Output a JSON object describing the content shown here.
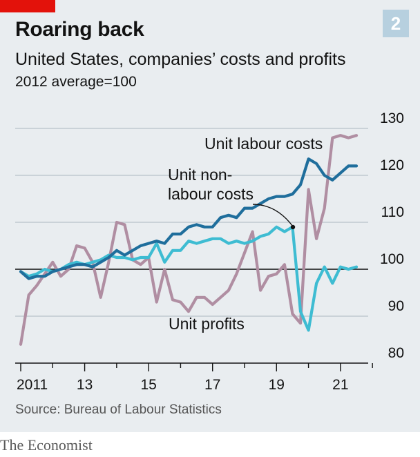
{
  "header": {
    "title": "Roaring back",
    "subtitle": "United States, companies’ costs and profits",
    "units": "2012 average=100",
    "chart_number": "2"
  },
  "footer": {
    "source": "Source: Bureau of Labour Statistics",
    "brand": "The Economist"
  },
  "colors": {
    "unit_labour_costs": "#1f6e9c",
    "unit_non_labour_costs": "#3ebcd2",
    "unit_profits": "#b08ea2",
    "background": "#e9edf0",
    "accent": "#e3120b"
  },
  "chart_data": {
    "type": "line",
    "title": "Roaring back",
    "xlabel": "",
    "ylabel": "2012 average=100",
    "xlim": [
      2011,
      2022.3
    ],
    "ylim": [
      80,
      130
    ],
    "y_ticks": [
      80,
      90,
      100,
      110,
      120,
      130
    ],
    "x_ticks": [
      {
        "value": 2011,
        "label": "2011"
      },
      {
        "value": 2013,
        "label": "13"
      },
      {
        "value": 2015,
        "label": "15"
      },
      {
        "value": 2017,
        "label": "17"
      },
      {
        "value": 2019,
        "label": "19"
      },
      {
        "value": 2021,
        "label": "21"
      }
    ],
    "reference_line": 100,
    "series": [
      {
        "name": "Unit profits",
        "color_key": "unit_profits",
        "label": "Unit profits",
        "x": [
          2011.0,
          2011.25,
          2011.5,
          2011.75,
          2012.0,
          2012.25,
          2012.5,
          2012.75,
          2013.0,
          2013.25,
          2013.5,
          2013.75,
          2014.0,
          2014.25,
          2014.5,
          2014.75,
          2015.0,
          2015.25,
          2015.5,
          2015.75,
          2016.0,
          2016.25,
          2016.5,
          2016.75,
          2017.0,
          2017.25,
          2017.5,
          2017.75,
          2018.0,
          2018.25,
          2018.5,
          2018.75,
          2019.0,
          2019.25,
          2019.5,
          2019.75,
          2020.0,
          2020.25,
          2020.5,
          2020.75,
          2021.0,
          2021.25,
          2021.5
        ],
        "y": [
          84,
          94.5,
          96.5,
          99,
          101.5,
          98.5,
          100,
          105,
          104.5,
          101.5,
          94,
          101.5,
          110,
          109.5,
          102,
          101,
          102.5,
          93,
          100,
          93.5,
          93,
          91,
          94,
          94,
          92.5,
          94,
          95.5,
          99,
          103.5,
          108,
          95.5,
          98.5,
          99,
          101,
          90.5,
          88.5,
          117,
          106.5,
          113,
          128,
          128.5,
          128,
          128.5
        ]
      },
      {
        "name": "Unit non-labour costs",
        "color_key": "unit_non_labour_costs",
        "label": "Unit non-labour costs",
        "x": [
          2011.0,
          2011.25,
          2011.5,
          2011.75,
          2012.0,
          2012.25,
          2012.5,
          2012.75,
          2013.0,
          2013.25,
          2013.5,
          2013.75,
          2014.0,
          2014.25,
          2014.5,
          2014.75,
          2015.0,
          2015.25,
          2015.5,
          2015.75,
          2016.0,
          2016.25,
          2016.5,
          2016.75,
          2017.0,
          2017.25,
          2017.5,
          2017.75,
          2018.0,
          2018.25,
          2018.5,
          2018.75,
          2019.0,
          2019.25,
          2019.5,
          2019.75,
          2020.0,
          2020.25,
          2020.5,
          2020.75,
          2021.0,
          2021.25,
          2021.5
        ],
        "y": [
          99.5,
          98.5,
          99,
          100,
          99.5,
          100,
          101,
          101.5,
          101,
          101.5,
          102,
          103,
          102.5,
          102.5,
          102,
          102.5,
          102.5,
          105.5,
          101.5,
          104,
          104,
          106,
          105.5,
          106,
          106.5,
          106.5,
          105.5,
          106,
          105.5,
          106,
          107,
          107.5,
          109,
          108,
          109,
          91,
          87,
          97,
          100.5,
          97,
          100.5,
          100,
          100.5
        ]
      },
      {
        "name": "Unit labour costs",
        "color_key": "unit_labour_costs",
        "label": "Unit labour costs",
        "x": [
          2011.0,
          2011.25,
          2011.5,
          2011.75,
          2012.0,
          2012.25,
          2012.5,
          2012.75,
          2013.0,
          2013.25,
          2013.5,
          2013.75,
          2014.0,
          2014.25,
          2014.5,
          2014.75,
          2015.0,
          2015.25,
          2015.5,
          2015.75,
          2016.0,
          2016.25,
          2016.5,
          2016.75,
          2017.0,
          2017.25,
          2017.5,
          2017.75,
          2018.0,
          2018.25,
          2018.5,
          2018.75,
          2019.0,
          2019.25,
          2019.5,
          2019.75,
          2020.0,
          2020.25,
          2020.5,
          2020.75,
          2021.0,
          2021.25,
          2021.5
        ],
        "y": [
          99.5,
          98,
          98.5,
          98.5,
          99.5,
          100,
          100.5,
          101,
          101,
          100.5,
          101.5,
          102.5,
          104,
          103,
          104,
          105,
          105.5,
          106,
          105.5,
          107.5,
          107.5,
          109,
          109.5,
          109,
          109,
          111,
          111.5,
          111,
          113,
          113,
          114,
          115,
          115.5,
          115.5,
          116,
          118,
          123.5,
          122.5,
          120,
          119,
          120.5,
          122,
          122
        ]
      }
    ],
    "annotations": [
      {
        "text": "Unit labour costs",
        "lines": [
          "Unit labour costs"
        ],
        "series": "Unit labour costs"
      },
      {
        "text": "Unit non-labour costs",
        "lines": [
          "Unit non-",
          "labour costs"
        ],
        "series": "Unit non-labour costs"
      },
      {
        "text": "Unit profits",
        "lines": [
          "Unit profits"
        ],
        "series": "Unit profits"
      }
    ]
  }
}
